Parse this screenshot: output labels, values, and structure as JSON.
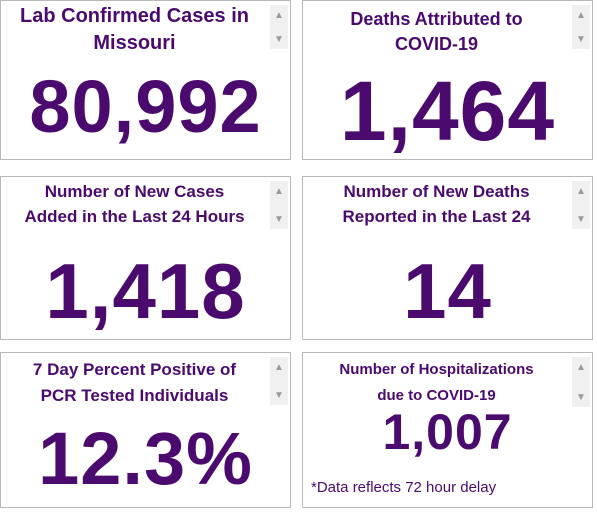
{
  "theme": {
    "accent": "#4b0a6e"
  },
  "cards": [
    {
      "title": "Lab Confirmed Cases in\nMissouri",
      "value": "80,992"
    },
    {
      "title": "Deaths Attributed to\nCOVID-19",
      "value": "1,464"
    },
    {
      "title": "Number of New Cases\nAdded in the Last 24 Hours",
      "value": "1,418"
    },
    {
      "title": "Number of New Deaths\nReported in the Last 24",
      "value": "14"
    },
    {
      "title": "7 Day Percent Positive of\nPCR Tested Individuals",
      "value": "12.3%"
    },
    {
      "title": "Number of Hospitalizations\ndue to COVID-19",
      "value": "1,007",
      "note": "*Data reflects 72 hour delay"
    }
  ],
  "icons": {
    "scroll_up": "triangle-up",
    "scroll_down": "triangle-down"
  }
}
